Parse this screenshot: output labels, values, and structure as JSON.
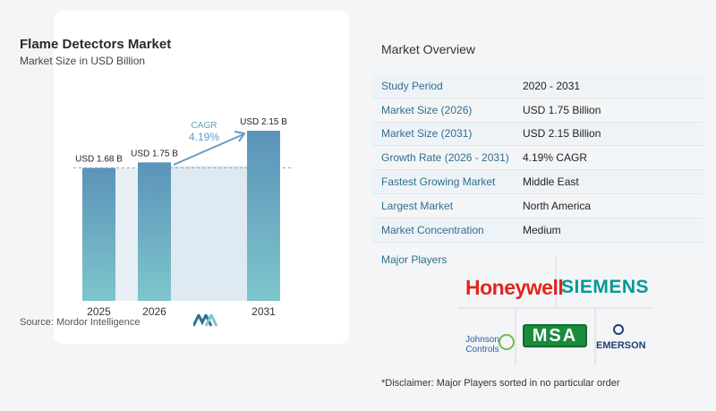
{
  "chart_data": {
    "type": "bar",
    "title": "Flame Detectors Market",
    "subtitle": "Market Size in USD Billion",
    "categories": [
      "2025",
      "2026",
      "2031"
    ],
    "values": [
      1.68,
      1.75,
      2.15
    ],
    "data_labels": [
      "USD 1.68 B",
      "USD 1.75 B",
      "USD 2.15 B"
    ],
    "cagr_label": "CAGR",
    "cagr_value": "4.19%",
    "bar_color_top": "#5b93b9",
    "bar_color_bottom": "#7ec6cc",
    "ylim": [
      0,
      2.15
    ],
    "grid": false
  },
  "source": "Source:  Mordor Intelligence",
  "overview": {
    "title": "Market Overview",
    "rows": [
      {
        "label": "Study Period",
        "value": "2020 - 2031"
      },
      {
        "label": "Market Size (2026)",
        "value": "USD 1.75 Billion"
      },
      {
        "label": "Market Size (2031)",
        "value": "USD 2.15 Billion"
      },
      {
        "label": "Growth Rate (2026 - 2031)",
        "value": "4.19% CAGR"
      },
      {
        "label": "Fastest Growing Market",
        "value": "Middle East"
      },
      {
        "label": "Largest Market",
        "value": "North America"
      },
      {
        "label": "Market Concentration",
        "value": "Medium"
      }
    ]
  },
  "players": {
    "title": "Major Players",
    "logos": [
      "Honeywell",
      "SIEMENS",
      "Johnson Controls",
      "MSA",
      "EMERSON"
    ],
    "jc_line1": "Johnson",
    "jc_line2": "Controls"
  },
  "disclaimer": "*Disclaimer: Major Players sorted in no particular order",
  "colors": {
    "label_blue": "#2f6f8f",
    "row_shade": "#eef3f7"
  }
}
